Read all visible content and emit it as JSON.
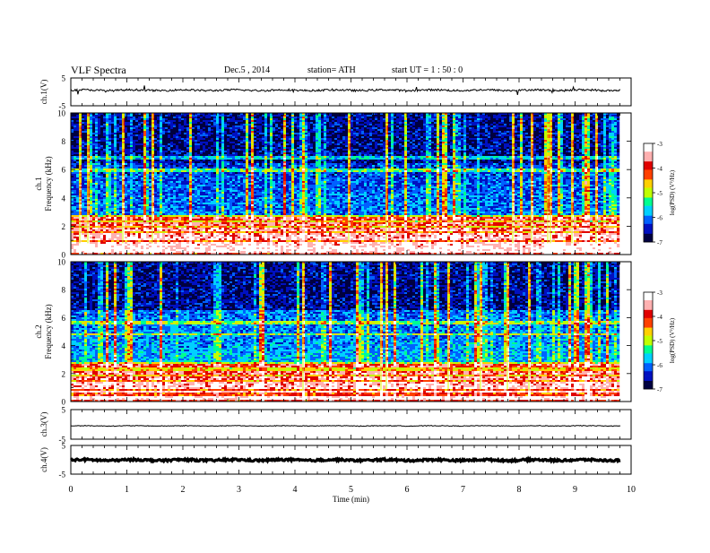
{
  "header": {
    "title": "VLF  Spectra",
    "date": "Dec.5  , 2014",
    "station": "station= ATH",
    "start": "start  UT  =   1 : 50 : 0"
  },
  "colors": {
    "colormap": [
      "#000040",
      "#0010c0",
      "#0060ff",
      "#00d0ff",
      "#00ff90",
      "#c0ff00",
      "#ffd000",
      "#ff4000",
      "#e00000",
      "#ffb0b0",
      "#ffffff"
    ]
  },
  "chart_data": [
    {
      "type": "line",
      "ylabel": "ch.1(V)",
      "ylim": [
        -5,
        5
      ],
      "yticks": [
        "5",
        "-5"
      ],
      "xlim": [
        0,
        10
      ],
      "baseline": 0.6,
      "noise": 0.35,
      "glitch_rate": 0.18
    },
    {
      "type": "heatmap",
      "ylabel": "ch.1\nFrequency  (kHz)",
      "ylim": [
        0,
        10
      ],
      "yticks": [
        "0",
        "2",
        "4",
        "6",
        "8",
        "10"
      ],
      "xlim": [
        0,
        9.8
      ],
      "colorbar": {
        "label": "log(PSD) (V²/Hz)",
        "range": [
          -7,
          -3
        ],
        "ticks": [
          "-3",
          "-4",
          "-5",
          "-6",
          "-7"
        ]
      },
      "bands_khz": [
        0.2,
        0.5,
        0.8,
        1.1,
        1.4,
        1.8,
        2.2,
        2.5,
        6.0,
        6.8
      ],
      "description_level": {
        "low_freq": -4.0,
        "mid_freq": -6.0,
        "high_freq": -6.6
      }
    },
    {
      "type": "heatmap",
      "ylabel": "ch.2\nFrequency  (kHz)",
      "ylim": [
        0,
        10
      ],
      "yticks": [
        "0",
        "2",
        "4",
        "6",
        "8",
        "10"
      ],
      "xlim": [
        0,
        9.8
      ],
      "colorbar": {
        "label": "log(PSD) (V²/Hz)",
        "range": [
          -7,
          -3
        ],
        "ticks": [
          "-3",
          "-4",
          "-5",
          "-6",
          "-7"
        ]
      },
      "bands_khz": [
        0.3,
        0.7,
        1.0,
        1.3,
        1.7,
        2.1,
        2.6,
        4.8,
        5.6
      ],
      "description_level": {
        "low_freq": -4.0,
        "mid_freq": -5.8,
        "high_freq": -6.6
      }
    },
    {
      "type": "line",
      "ylabel": "ch.3(V)",
      "ylim": [
        -5,
        5
      ],
      "yticks": [
        "5",
        "-5"
      ],
      "xlim": [
        0,
        10
      ],
      "baseline": -0.5,
      "noise": 0.12,
      "glitch_rate": 0.0
    },
    {
      "type": "line",
      "ylabel": "ch.4(V)",
      "ylim": [
        -5,
        5
      ],
      "yticks": [
        "5",
        "-5"
      ],
      "xlim": [
        0,
        10
      ],
      "baseline": -0.1,
      "noise": 0.35,
      "glitch_rate": 0.0
    }
  ],
  "xaxis": {
    "label": "Time  (min)",
    "ticks": [
      "0",
      "1",
      "2",
      "3",
      "4",
      "5",
      "6",
      "7",
      "8",
      "9",
      "10"
    ]
  }
}
